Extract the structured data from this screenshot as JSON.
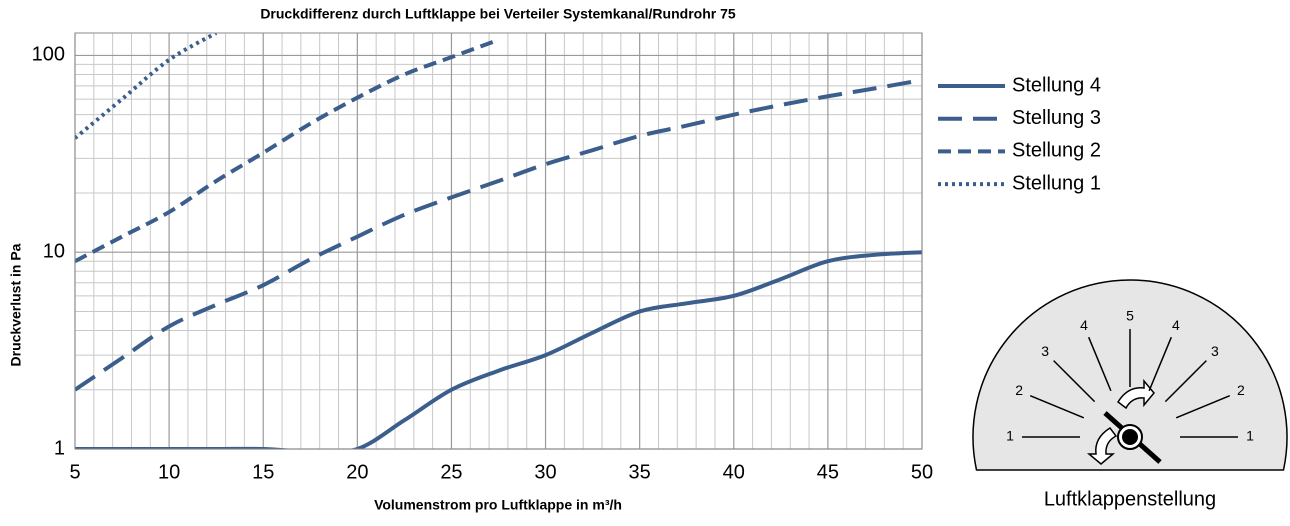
{
  "chart_data": {
    "type": "line",
    "title": "Druckdifferenz durch Luftklappe bei Verteiler Systemkanal/Rundrohr 75",
    "x_label": "Volumenstrom pro Luftklappe in m³/h",
    "y_label": "Druckverlust in Pa",
    "x": [
      5,
      7.5,
      10,
      12.5,
      15,
      17.5,
      20,
      22.5,
      25,
      27.5,
      30,
      32.5,
      35,
      37.5,
      40,
      42.5,
      45,
      47.5,
      50
    ],
    "series": [
      {
        "name": "Stellung 4",
        "color": "#3b5e8c",
        "dash": "solid",
        "values": [
          1,
          1,
          1,
          1,
          1,
          0.97,
          1,
          1.4,
          2,
          2.5,
          3,
          3.9,
          5,
          5.5,
          6,
          7.3,
          9,
          9.7,
          10
        ]
      },
      {
        "name": "Stellung 3",
        "color": "#3b5e8c",
        "dash": "long-dash",
        "values": [
          2,
          2.9,
          4.2,
          5.4,
          6.8,
          9.2,
          12,
          15.5,
          19,
          23,
          28,
          33,
          39,
          44,
          50,
          56,
          62,
          68,
          75
        ]
      },
      {
        "name": "Stellung 2",
        "color": "#3b5e8c",
        "dash": "dash",
        "values": [
          9,
          12,
          16,
          23,
          32,
          45,
          61,
          80,
          98,
          120,
          null,
          null,
          null,
          null,
          null,
          null,
          null,
          null,
          null
        ]
      },
      {
        "name": "Stellung 1",
        "color": "#3b5e8c",
        "dash": "dot",
        "values": [
          38,
          60,
          95,
          130,
          null,
          null,
          null,
          null,
          null,
          null,
          null,
          null,
          null,
          null,
          null,
          null,
          null,
          null,
          null
        ]
      }
    ],
    "xlim": [
      5,
      50
    ],
    "xticks": [
      5,
      10,
      15,
      20,
      25,
      30,
      35,
      40,
      45,
      50
    ],
    "xminorticks": [
      6,
      7,
      8,
      9,
      11,
      12,
      13,
      14,
      16,
      17,
      18,
      19,
      21,
      22,
      23,
      24,
      26,
      27,
      28,
      29,
      31,
      32,
      33,
      34,
      36,
      37,
      38,
      39,
      41,
      42,
      43,
      44,
      46,
      47,
      48,
      49
    ],
    "ylim": [
      1,
      130
    ],
    "yticks": [
      1,
      10,
      100
    ],
    "yminorticks": [
      2,
      3,
      4,
      5,
      6,
      7,
      8,
      9,
      20,
      30,
      40,
      50,
      60,
      70,
      80,
      90
    ],
    "log_y": true,
    "grid": true,
    "legend": "right"
  },
  "dial": {
    "labels": [
      "1",
      "2",
      "3",
      "4",
      "5",
      "4",
      "3",
      "2",
      "1"
    ],
    "caption": "Luftklappenstellung"
  }
}
